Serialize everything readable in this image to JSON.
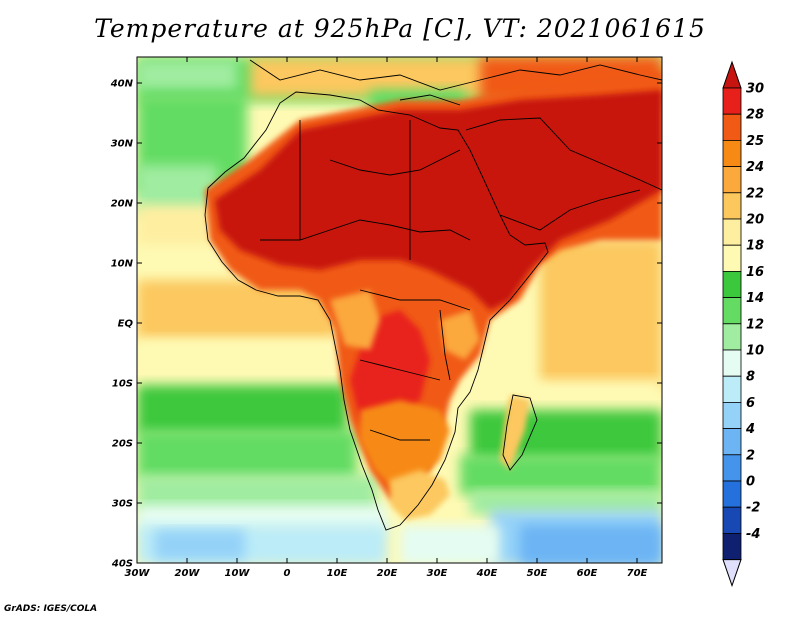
{
  "title": "Temperature at 925hPa [C], VT: 2021061615",
  "credit": "GrADS: IGES/COLA",
  "map": {
    "lon_range": [
      -30,
      75
    ],
    "lat_range": [
      -40,
      45
    ],
    "lon_ticks": [
      "30W",
      "20W",
      "10W",
      "0",
      "10E",
      "20E",
      "30E",
      "40E",
      "50E",
      "60E",
      "70E"
    ],
    "lat_ticks": [
      "40N",
      "30N",
      "20N",
      "10N",
      "EQ",
      "10S",
      "20S",
      "30S",
      "40S"
    ]
  },
  "colorbar": {
    "labels": [
      "30",
      "28",
      "25",
      "24",
      "22",
      "20",
      "18",
      "16",
      "14",
      "12",
      "10",
      "8",
      "6",
      "4",
      "2",
      "0",
      "-2",
      "-4"
    ],
    "colors": [
      "#e8201c",
      "#f05a14",
      "#f78a14",
      "#fba83c",
      "#fcc85e",
      "#feeea0",
      "#fefab4",
      "#3cc83c",
      "#64dc64",
      "#a0eca0",
      "#e4fcf2",
      "#bcecf8",
      "#94d2f8",
      "#6cb4f4",
      "#4494ec",
      "#2470dc",
      "#1848b4",
      "#102070"
    ],
    "top_color": "#c81410",
    "bottom_color": "#e0e0fc"
  }
}
